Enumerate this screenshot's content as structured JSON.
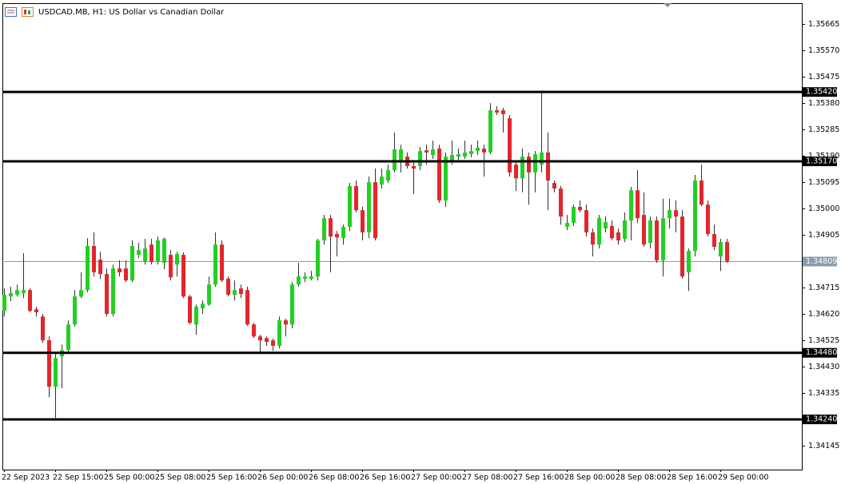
{
  "chart_data": {
    "type": "candlestick",
    "title": "USDCAD.MB, H1:  US Dollar vs Canadian Dollar",
    "categories": [
      "22 Sep 2023",
      null,
      null,
      null,
      null,
      null,
      null,
      null,
      "22 Sep 15:00",
      null,
      null,
      null,
      null,
      null,
      null,
      null,
      "25 Sep 00:00",
      null,
      null,
      null,
      null,
      null,
      null,
      null,
      "25 Sep 08:00",
      null,
      null,
      null,
      null,
      null,
      null,
      null,
      "25 Sep 16:00",
      null,
      null,
      null,
      null,
      null,
      null,
      null,
      "26 Sep 00:00",
      null,
      null,
      null,
      null,
      null,
      null,
      null,
      "26 Sep 08:00",
      null,
      null,
      null,
      null,
      null,
      null,
      null,
      "26 Sep 16:00",
      null,
      null,
      null,
      null,
      null,
      null,
      null,
      "27 Sep 00:00",
      null,
      null,
      null,
      null,
      null,
      null,
      null,
      "27 Sep 08:00",
      null,
      null,
      null,
      null,
      null,
      null,
      null,
      "27 Sep 16:00",
      null,
      null,
      null,
      null,
      null,
      null,
      null,
      "28 Sep 00:00",
      null,
      null,
      null,
      null,
      null,
      null,
      null,
      "28 Sep 08:00",
      null,
      null,
      null,
      null,
      null,
      null,
      null,
      "28 Sep 16:00",
      null,
      null,
      null,
      null,
      null,
      null,
      null,
      "29 Sep 00:00",
      null
    ],
    "open": [
      1.34631,
      1.34683,
      1.34689,
      1.34695,
      1.34706,
      1.34637,
      1.34611,
      1.34525,
      1.34358,
      1.34467,
      1.3449,
      1.34582,
      1.34683,
      1.34706,
      1.34865,
      1.34816,
      1.34764,
      1.3462,
      1.34784,
      1.34784,
      1.34741,
      1.34833,
      1.3481,
      1.3487,
      1.34807,
      1.34804,
      1.34833,
      1.34798,
      1.34833,
      1.34683,
      1.34582,
      1.3464,
      1.34654,
      1.34726,
      1.3487,
      1.34747,
      1.34689,
      1.34712,
      1.34706,
      1.34582,
      1.34539,
      1.34533,
      1.34525,
      1.34505,
      1.34597,
      1.34582,
      1.34726,
      1.34747,
      1.34747,
      1.34755,
      1.34885,
      1.34965,
      1.34908,
      1.34893,
      1.34934,
      1.35081,
      1.34994,
      1.34914,
      1.35095,
      1.35086,
      1.35101,
      1.35138,
      1.35173,
      1.35187,
      1.35153,
      1.35153,
      1.3521,
      1.35193,
      1.35216,
      1.35029,
      1.35173,
      1.35187,
      1.35187,
      1.35196,
      1.35207,
      1.35216,
      1.35202,
      1.35354,
      1.35354,
      1.35325,
      1.35158,
      1.35109,
      1.35187,
      1.3513,
      1.35158,
      1.35202,
      1.35092,
      1.35072,
      1.34934,
      1.34948,
      1.35006,
      1.34994,
      1.34914,
      1.3487,
      1.34928,
      1.34937,
      1.34914,
      1.34891,
      1.34957,
      1.35066,
      1.34977,
      1.34876,
      1.34957,
      1.34813,
      1.34965,
      1.34994,
      1.34971,
      1.3477,
      1.34847,
      1.35101,
      1.35014,
      1.34908,
      1.34827,
      1.34879
    ],
    "high": [
      1.34712,
      1.34718,
      1.34726,
      1.34839,
      1.34712,
      1.34646,
      1.3462,
      1.34539,
      1.34482,
      1.3451,
      1.34597,
      1.34706,
      1.3477,
      1.34893,
      1.34914,
      1.34844,
      1.34784,
      1.34798,
      1.34813,
      1.34813,
      1.34885,
      1.34876,
      1.34891,
      1.34891,
      1.34899,
      1.34896,
      1.3485,
      1.34844,
      1.34842,
      1.34689,
      1.34654,
      1.34669,
      1.34755,
      1.34914,
      1.34885,
      1.34755,
      1.34741,
      1.34726,
      1.34718,
      1.34588,
      1.34545,
      1.34539,
      1.34531,
      1.34611,
      1.34603,
      1.34735,
      1.34804,
      1.3477,
      1.34775,
      1.34891,
      1.34977,
      1.34977,
      1.34919,
      1.34942,
      1.35092,
      1.35101,
      1.35006,
      1.35115,
      1.35144,
      1.35144,
      1.35158,
      1.35274,
      1.3523,
      1.35202,
      1.35173,
      1.35222,
      1.3523,
      1.35245,
      1.3523,
      1.35202,
      1.35245,
      1.35216,
      1.35245,
      1.3523,
      1.35245,
      1.3523,
      1.3538,
      1.35369,
      1.35363,
      1.35337,
      1.35173,
      1.35216,
      1.35202,
      1.35207,
      1.35426,
      1.35274,
      1.35101,
      1.35081,
      1.34977,
      1.35014,
      1.35029,
      1.35014,
      1.34928,
      1.34977,
      1.34971,
      1.34957,
      1.34928,
      1.34986,
      1.35078,
      1.35138,
      1.35058,
      1.34971,
      1.34971,
      1.35035,
      1.35035,
      1.35029,
      1.34994,
      1.34856,
      1.35121,
      1.35158,
      1.35029,
      1.34942,
      1.34891,
      1.34891
    ],
    "low": [
      1.34611,
      1.34666,
      1.34683,
      1.34677,
      1.34626,
      1.34611,
      1.34516,
      1.3432,
      1.34245,
      1.34352,
      1.34482,
      1.34574,
      1.34677,
      1.34698,
      1.34755,
      1.34747,
      1.34611,
      1.34611,
      1.34755,
      1.34735,
      1.34735,
      1.34821,
      1.34798,
      1.34798,
      1.34798,
      1.34781,
      1.34741,
      1.34755,
      1.34677,
      1.34582,
      1.34545,
      1.3462,
      1.34649,
      1.34718,
      1.34735,
      1.34683,
      1.34669,
      1.34677,
      1.34577,
      1.34533,
      1.34482,
      1.34505,
      1.34487,
      1.34496,
      1.34539,
      1.34568,
      1.34718,
      1.34735,
      1.34741,
      1.34741,
      1.3487,
      1.3477,
      1.34827,
      1.3487,
      1.34919,
      1.34986,
      1.34885,
      1.34893,
      1.34885,
      1.35072,
      1.35092,
      1.3513,
      1.3513,
      1.35144,
      1.35052,
      1.35138,
      1.35158,
      1.35179,
      1.3502,
      1.35006,
      1.35158,
      1.35173,
      1.35179,
      1.35184,
      1.35193,
      1.35115,
      1.35196,
      1.35337,
      1.35274,
      1.35115,
      1.35063,
      1.35058,
      1.35014,
      1.35058,
      1.3513,
      1.34994,
      1.35058,
      1.34942,
      1.34922,
      1.34937,
      1.34986,
      1.34899,
      1.34827,
      1.34856,
      1.34914,
      1.34885,
      1.3487,
      1.34879,
      1.34885,
      1.34948,
      1.34862,
      1.34856,
      1.34804,
      1.34755,
      1.34928,
      1.34914,
      1.34747,
      1.34703,
      1.34827,
      1.35009,
      1.34899,
      1.3485,
      1.34775,
      1.34804
    ],
    "close": [
      1.34689,
      1.34695,
      1.34706,
      1.34706,
      1.34631,
      1.34626,
      1.34525,
      1.34358,
      1.34461,
      1.3449,
      1.34582,
      1.34683,
      1.34706,
      1.34865,
      1.3477,
      1.34764,
      1.3462,
      1.34784,
      1.3477,
      1.34741,
      1.34865,
      1.3485,
      1.34856,
      1.34807,
      1.34885,
      1.34891,
      1.34752,
      1.34836,
      1.34683,
      1.34588,
      1.34646,
      1.34657,
      1.34726,
      1.3487,
      1.34741,
      1.34689,
      1.34706,
      1.34692,
      1.34582,
      1.34539,
      1.34525,
      1.34519,
      1.34505,
      1.34597,
      1.34582,
      1.34726,
      1.34755,
      1.34755,
      1.34755,
      1.34885,
      1.34965,
      1.34899,
      1.34896,
      1.34934,
      1.35081,
      1.34994,
      1.34914,
      1.35095,
      1.34893,
      1.35115,
      1.35138,
      1.35213,
      1.35213,
      1.35153,
      1.35144,
      1.35207,
      1.35202,
      1.35213,
      1.35029,
      1.35187,
      1.35193,
      1.35196,
      1.35202,
      1.35207,
      1.35219,
      1.35202,
      1.35354,
      1.35346,
      1.3534,
      1.3513,
      1.35109,
      1.35187,
      1.3513,
      1.35196,
      1.35202,
      1.35101,
      1.35072,
      1.34971,
      1.34948,
      1.35006,
      1.34994,
      1.34914,
      1.3487,
      1.34965,
      1.34951,
      1.34893,
      1.34885,
      1.34957,
      1.35066,
      1.34965,
      1.3487,
      1.34957,
      1.34813,
      1.34965,
      1.34994,
      1.34971,
      1.34755,
      1.34847,
      1.35101,
      1.35014,
      1.34908,
      1.34862,
      1.34879,
      1.34809
    ],
    "up_color": "#22d022",
    "down_color": "#e3262b",
    "wick_color": "#333333",
    "ylim": [
      1.34059,
      1.3574
    ],
    "yticks": [
      1.35665,
      {
        "value": 1.3557,
        "label": "1.35570"
      },
      1.35475,
      {
        "value": 1.3538,
        "label": "1.35380"
      },
      1.35285,
      {
        "value": 1.3519,
        "label": "1.35190"
      },
      1.35095,
      {
        "value": 1.35,
        "label": "1.35000"
      },
      1.34905,
      1.34715,
      {
        "value": 1.3462,
        "label": "1.34620"
      },
      1.34525,
      {
        "value": 1.3443,
        "label": "1.34430"
      },
      1.34335,
      1.34145
    ],
    "levels": [
      {
        "value": 1.3542,
        "label": "1.35420"
      },
      {
        "value": 1.3517,
        "label": "1.35170"
      },
      {
        "value": 1.3448,
        "label": "1.34480"
      },
      {
        "value": 1.3424,
        "label": "1.34240"
      }
    ],
    "level_color": "#000000",
    "last_price": 1.34809,
    "last_price_color": "#8c9ba8",
    "grid": false
  }
}
